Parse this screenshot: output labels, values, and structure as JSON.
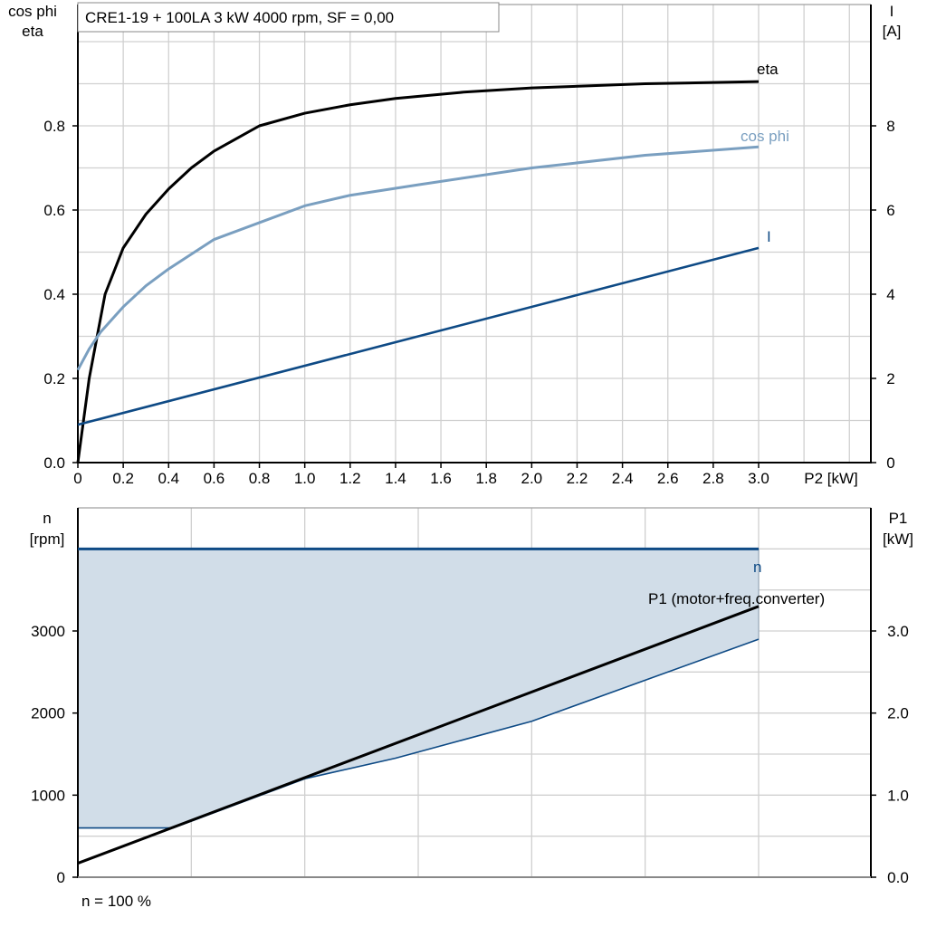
{
  "title": "CRE1-19 + 100LA   3 kW   4000 rpm, SF = 0,00",
  "footer_note": "n = 100 %",
  "colors": {
    "eta": "#000000",
    "cos_phi": "#7a9fc0",
    "I": "#0e4a85",
    "n": "#0e4a85",
    "P1": "#000000",
    "band_fill": "#d1dde8",
    "grid": "#d0d0d0"
  },
  "chart_data": [
    {
      "type": "line",
      "title": "CRE1-19 + 100LA   3 kW   4000 rpm, SF = 0,00",
      "xlabel": "P2 [kW]",
      "ylabel_left": [
        "cos phi",
        "eta"
      ],
      "ylabel_right": [
        "I",
        "[A]"
      ],
      "xlim": [
        0,
        3.5
      ],
      "ylim_left": [
        0,
        1.0
      ],
      "ylim_right": [
        0,
        10
      ],
      "grid": true,
      "x_ticks": [
        "0",
        "0.2",
        "0.4",
        "0.6",
        "0.8",
        "1.0",
        "1.2",
        "1.4",
        "1.6",
        "1.8",
        "2.0",
        "2.2",
        "2.4",
        "2.6",
        "2.8",
        "3.0"
      ],
      "y_ticks_left": [
        "0.0",
        "0.2",
        "0.4",
        "0.6",
        "0.8"
      ],
      "y_ticks_right": [
        "0",
        "2",
        "4",
        "6",
        "8"
      ],
      "series": [
        {
          "name": "eta",
          "axis": "left",
          "x": [
            0,
            0.05,
            0.12,
            0.2,
            0.3,
            0.4,
            0.5,
            0.6,
            0.8,
            1.0,
            1.2,
            1.4,
            1.7,
            2.0,
            2.5,
            3.0
          ],
          "y": [
            0,
            0.2,
            0.4,
            0.51,
            0.59,
            0.65,
            0.7,
            0.74,
            0.8,
            0.83,
            0.85,
            0.865,
            0.88,
            0.89,
            0.9,
            0.905
          ]
        },
        {
          "name": "cos phi",
          "axis": "left",
          "x": [
            0,
            0.05,
            0.1,
            0.2,
            0.3,
            0.4,
            0.6,
            0.8,
            1.0,
            1.2,
            1.5,
            2.0,
            2.5,
            3.0
          ],
          "y": [
            0.22,
            0.27,
            0.31,
            0.37,
            0.42,
            0.46,
            0.53,
            0.57,
            0.61,
            0.635,
            0.66,
            0.7,
            0.73,
            0.75
          ]
        },
        {
          "name": "I",
          "axis": "right",
          "x": [
            0,
            3.0
          ],
          "y": [
            0.9,
            5.1
          ]
        }
      ]
    },
    {
      "type": "line",
      "ylabel_left": [
        "n",
        "[rpm]"
      ],
      "ylabel_right": [
        "P1",
        "[kW]"
      ],
      "xlim": [
        0,
        3.5
      ],
      "ylim_left": [
        0,
        4500
      ],
      "ylim_right": [
        0,
        4.5
      ],
      "grid": true,
      "y_ticks_left": [
        "0",
        "1000",
        "2000",
        "3000"
      ],
      "y_ticks_right": [
        "0.0",
        "1.0",
        "2.0",
        "3.0"
      ],
      "operating_band": {
        "x_upper": [
          0,
          3.0
        ],
        "y_upper": [
          4000,
          4000
        ],
        "x_lower": [
          0,
          0.42,
          1.0,
          1.4,
          2.0,
          2.5,
          3.0
        ],
        "y_lower": [
          600,
          600,
          1200,
          1450,
          1900,
          2400,
          2900
        ]
      },
      "series": [
        {
          "name": "n",
          "axis": "left",
          "x": [
            0,
            3.0
          ],
          "y": [
            4000,
            4000
          ]
        },
        {
          "name": "P1 (motor+freq.converter)",
          "axis": "right",
          "x": [
            0,
            3.0
          ],
          "y": [
            0.17,
            3.3
          ]
        }
      ]
    }
  ]
}
